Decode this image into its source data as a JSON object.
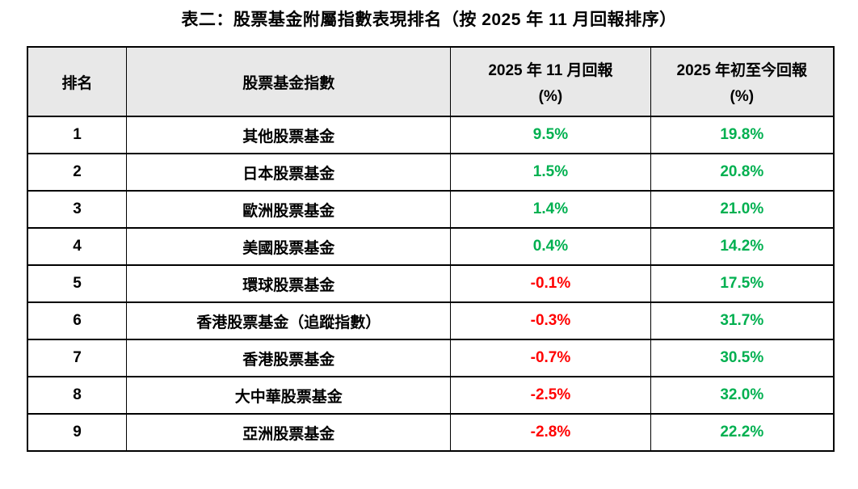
{
  "title": "表二：股票基金附屬指數表現排名（按 2025 年 11 月回報排序）",
  "colors": {
    "positive": "#00b050",
    "negative": "#ff0000",
    "header_bg": "#e8e8e8",
    "border": "#000000",
    "text": "#000000"
  },
  "table": {
    "headers": {
      "rank": "排名",
      "index": "股票基金指數",
      "nov_line1": "2025 年 11 月回報",
      "nov_line2": "(%)",
      "ytd_line1": "2025 年初至今回報",
      "ytd_line2": "(%)"
    },
    "rows": [
      {
        "rank": "1",
        "index": "其他股票基金",
        "nov": "9.5%",
        "nov_color": "positive",
        "ytd": "19.8%",
        "ytd_color": "positive"
      },
      {
        "rank": "2",
        "index": "日本股票基金",
        "nov": "1.5%",
        "nov_color": "positive",
        "ytd": "20.8%",
        "ytd_color": "positive"
      },
      {
        "rank": "3",
        "index": "歐洲股票基金",
        "nov": "1.4%",
        "nov_color": "positive",
        "ytd": "21.0%",
        "ytd_color": "positive"
      },
      {
        "rank": "4",
        "index": "美國股票基金",
        "nov": "0.4%",
        "nov_color": "positive",
        "ytd": "14.2%",
        "ytd_color": "positive"
      },
      {
        "rank": "5",
        "index": "環球股票基金",
        "nov": "-0.1%",
        "nov_color": "negative",
        "ytd": "17.5%",
        "ytd_color": "positive"
      },
      {
        "rank": "6",
        "index": "香港股票基金（追蹤指數）",
        "nov": "-0.3%",
        "nov_color": "negative",
        "ytd": "31.7%",
        "ytd_color": "positive"
      },
      {
        "rank": "7",
        "index": "香港股票基金",
        "nov": "-0.7%",
        "nov_color": "negative",
        "ytd": "30.5%",
        "ytd_color": "positive"
      },
      {
        "rank": "8",
        "index": "大中華股票基金",
        "nov": "-2.5%",
        "nov_color": "negative",
        "ytd": "32.0%",
        "ytd_color": "positive"
      },
      {
        "rank": "9",
        "index": "亞洲股票基金",
        "nov": "-2.8%",
        "nov_color": "negative",
        "ytd": "22.2%",
        "ytd_color": "positive"
      }
    ]
  }
}
